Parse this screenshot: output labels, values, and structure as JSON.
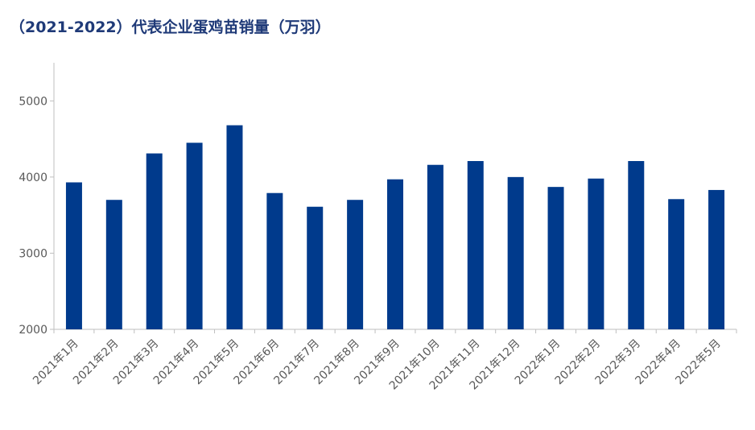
{
  "chart_data": {
    "type": "bar",
    "title": "（2021-2022）代表企业蛋鸡苗销量（万羽）",
    "categories": [
      "2021年1月",
      "2021年2月",
      "2021年3月",
      "2021年4月",
      "2021年5月",
      "2021年6月",
      "2021年7月",
      "2021年8月",
      "2021年9月",
      "2021年10月",
      "2021年11月",
      "2021年12月",
      "2022年1月",
      "2022年2月",
      "2022年3月",
      "2022年4月",
      "2022年5月"
    ],
    "values": [
      3930,
      3700,
      4310,
      4450,
      4680,
      3790,
      3610,
      3700,
      3970,
      4160,
      4210,
      4000,
      3870,
      3980,
      4210,
      3710,
      3830
    ],
    "color": "#003a8c",
    "ylim": [
      2000,
      5500
    ],
    "yticks": [
      2000,
      3000,
      4000,
      5000
    ],
    "grid": false
  }
}
